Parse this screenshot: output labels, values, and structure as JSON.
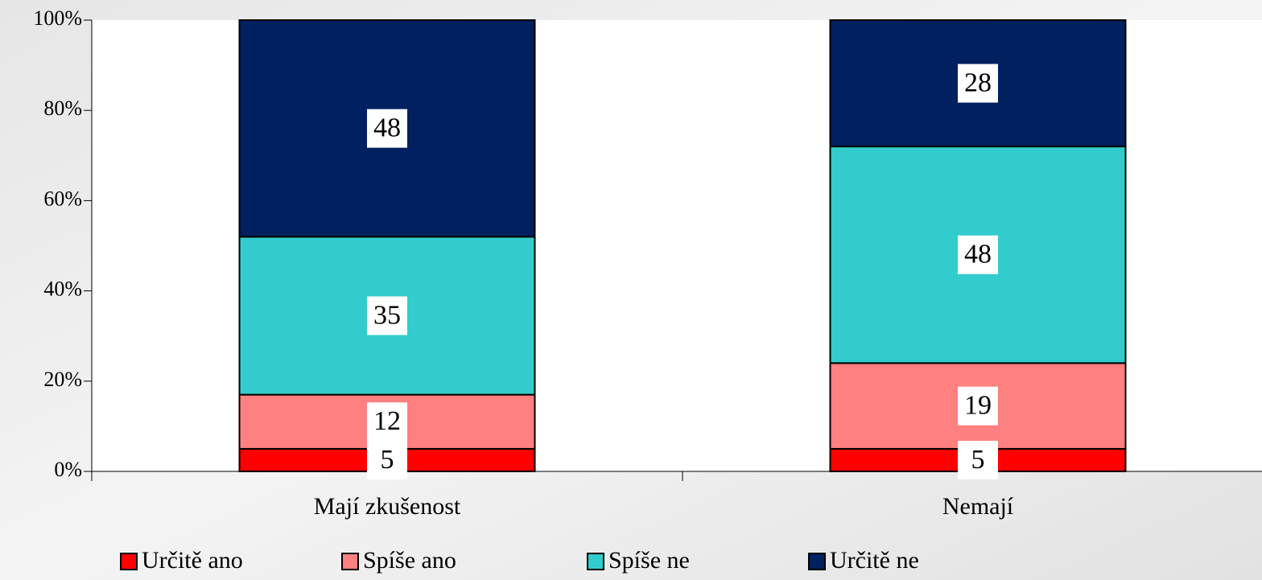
{
  "chart_data": {
    "type": "stacked_bar",
    "categories": [
      "Mají zkušenost",
      "Nemají"
    ],
    "series": [
      {
        "name": "Určitě ano",
        "color": "#ff0000",
        "values": [
          5,
          5
        ]
      },
      {
        "name": "Spíše ano",
        "color": "#ff8080",
        "values": [
          12,
          19
        ]
      },
      {
        "name": "Spíše ne",
        "color": "#33cccc",
        "values": [
          35,
          48
        ]
      },
      {
        "name": "Určitě ne",
        "color": "#002060",
        "values": [
          48,
          28
        ]
      }
    ],
    "ylim": [
      0,
      100
    ],
    "yticks": [
      {
        "value": 0,
        "label": "0%"
      },
      {
        "value": 20,
        "label": "20%"
      },
      {
        "value": 40,
        "label": "40%"
      },
      {
        "value": 60,
        "label": "60%"
      },
      {
        "value": 80,
        "label": "80%"
      },
      {
        "value": 100,
        "label": "100%"
      }
    ],
    "legend": "bottom"
  }
}
